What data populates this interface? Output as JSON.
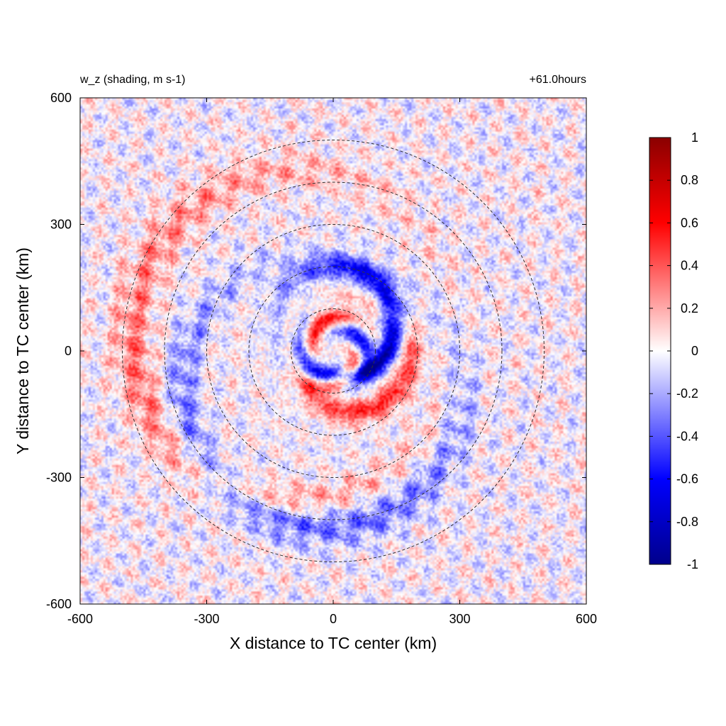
{
  "chart_data": {
    "type": "heatmap",
    "title": "w_z (shading, m s-1)",
    "subtitle": "+61.0hours",
    "xlabel": "X distance to TC center (km)",
    "ylabel": "Y distance to TC center (km)",
    "xlim": [
      -600,
      600
    ],
    "ylim": [
      -600,
      600
    ],
    "xticks": [
      -600,
      -300,
      0,
      300,
      600
    ],
    "yticks": [
      -600,
      -300,
      0,
      300,
      600
    ],
    "xtick_labels": [
      "-600",
      "-300",
      "0",
      "300",
      "600"
    ],
    "ytick_labels": [
      "-600",
      "-300",
      "0",
      "300",
      "600"
    ],
    "grid": false,
    "colormap": {
      "name": "blue-white-red",
      "range": [
        -1,
        1
      ],
      "stops": [
        {
          "value": -1,
          "color": "#00008b"
        },
        {
          "value": -0.6,
          "color": "#0000ff"
        },
        {
          "value": 0,
          "color": "#ffffff"
        },
        {
          "value": 0.6,
          "color": "#ff0000"
        },
        {
          "value": 1,
          "color": "#8b0000"
        }
      ],
      "ticks": [
        1,
        0.8,
        0.6,
        0.4,
        0.2,
        0,
        -0.2,
        -0.4,
        -0.6,
        -0.8,
        -1
      ],
      "tick_labels": [
        "1",
        "0.8",
        "0.6",
        "0.4",
        "0.2",
        "0",
        "-0.2",
        "-0.4",
        "-0.6",
        "-0.8",
        "-1"
      ]
    },
    "contours": {
      "style": "dashed",
      "color": "#333333",
      "radii_km": [
        100,
        200,
        300,
        400,
        500
      ]
    },
    "field_features": {
      "eye_center_km": [
        0,
        0
      ],
      "spiral_bands": [
        {
          "sign": "negative",
          "start_radius_km": 60,
          "end_radius_km": 200,
          "amplitude": 0.9
        },
        {
          "sign": "positive",
          "start_radius_km": 80,
          "end_radius_km": 180,
          "amplitude": 0.5
        },
        {
          "sign": "negative",
          "start_radius_km": 220,
          "end_radius_km": 420,
          "amplitude": 0.35
        },
        {
          "sign": "positive",
          "start_radius_km": 280,
          "end_radius_km": 480,
          "amplitude": 0.3
        }
      ]
    }
  }
}
